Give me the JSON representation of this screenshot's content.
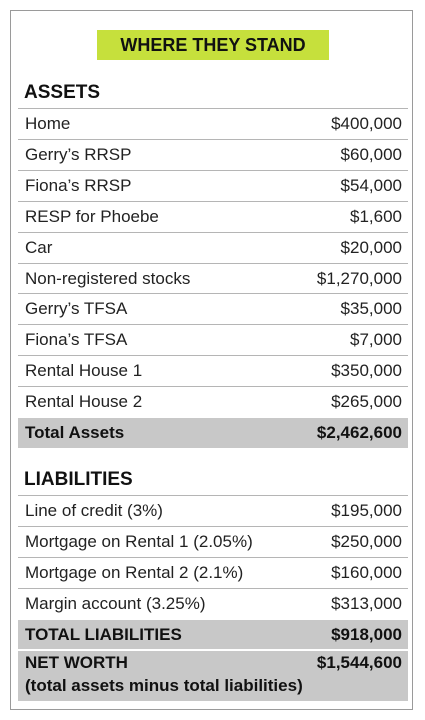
{
  "title": "WHERE THEY STAND",
  "assets": {
    "heading": "ASSETS",
    "rows": [
      [
        "Home",
        "$400,000"
      ],
      [
        "Gerry’s RRSP",
        "$60,000"
      ],
      [
        "Fiona’s RRSP",
        "$54,000"
      ],
      [
        "RESP for Phoebe",
        "$1,600"
      ],
      [
        "Car",
        "$20,000"
      ],
      [
        "Non-registered stocks",
        "$1,270,000"
      ],
      [
        "Gerry’s TFSA",
        "$35,000"
      ],
      [
        "Fiona’s TFSA",
        "$7,000"
      ],
      [
        "Rental House 1",
        "$350,000"
      ],
      [
        "Rental House 2",
        "$265,000"
      ]
    ],
    "total": [
      "Total Assets",
      "$2,462,600"
    ]
  },
  "liabilities": {
    "heading": "LIABILITIES",
    "rows": [
      [
        "Line of credit (3%)",
        "$195,000"
      ],
      [
        "Mortgage on Rental 1 (2.05%)",
        "$250,000"
      ],
      [
        "Mortgage on Rental 2 (2.1%)",
        "$160,000"
      ],
      [
        "Margin account (3.25%)",
        "$313,000"
      ]
    ],
    "total": [
      "TOTAL LIABILITIES",
      "$918,000"
    ]
  },
  "net_worth": {
    "label": "NET WORTH",
    "value": "$1,544,600",
    "note": "(total assets minus total liabilities)"
  }
}
